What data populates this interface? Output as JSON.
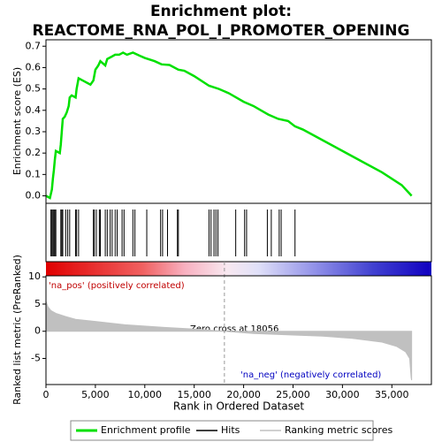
{
  "chart_data": [
    {
      "type": "line",
      "title": [
        "Enrichment plot:",
        "REACTOME_RNA_POL_I_PROMOTER_OPENING"
      ],
      "y_label": "Enrichment score (ES)",
      "xlim": [
        0,
        39000
      ],
      "ylim": [
        -0.035,
        0.73
      ],
      "yticks": [
        {
          "value": 0,
          "label": "0.0"
        },
        0.1,
        0.2,
        0.3,
        0.4,
        0.5,
        0.6,
        0.7
      ],
      "x": [
        0,
        400,
        600,
        700,
        800,
        900,
        1000,
        1400,
        1500,
        1600,
        1700,
        1900,
        2100,
        2300,
        2400,
        2600,
        3000,
        3100,
        3300,
        3700,
        4500,
        4800,
        5000,
        5300,
        5500,
        6000,
        6200,
        6600,
        7000,
        7400,
        7800,
        8200,
        8800,
        9500,
        10000,
        11000,
        11700,
        12500,
        13400,
        14000,
        15000,
        16500,
        17500,
        18500,
        20000,
        21000,
        22500,
        23500,
        24500,
        25200,
        26000,
        28000,
        30000,
        32000,
        34000,
        36000,
        37000
      ],
      "series": [
        {
          "name": "Enrichment profile",
          "color": "#00e000",
          "values": [
            0.0,
            -0.01,
            0.03,
            0.08,
            0.12,
            0.17,
            0.21,
            0.2,
            0.24,
            0.3,
            0.36,
            0.37,
            0.39,
            0.42,
            0.46,
            0.47,
            0.46,
            0.5,
            0.55,
            0.54,
            0.52,
            0.54,
            0.59,
            0.61,
            0.63,
            0.61,
            0.64,
            0.65,
            0.66,
            0.66,
            0.67,
            0.66,
            0.67,
            0.655,
            0.645,
            0.63,
            0.615,
            0.612,
            0.59,
            0.585,
            0.56,
            0.515,
            0.5,
            0.48,
            0.44,
            0.42,
            0.38,
            0.36,
            0.35,
            0.325,
            0.31,
            0.26,
            0.21,
            0.16,
            0.11,
            0.05,
            0.0
          ]
        }
      ]
    },
    {
      "type": "rug",
      "name": "Hits",
      "color": "#000000",
      "xlim": [
        0,
        39000
      ],
      "x": [
        500,
        600,
        700,
        800,
        900,
        1000,
        1500,
        1600,
        1700,
        2000,
        2200,
        2400,
        3000,
        3100,
        3300,
        4800,
        4900,
        5100,
        5400,
        5500,
        6000,
        6200,
        6500,
        6700,
        7000,
        7200,
        7700,
        7900,
        8800,
        9000,
        10200,
        11600,
        11800,
        12300,
        13300,
        13400,
        16500,
        16700,
        17000,
        17200,
        17400,
        19200,
        20100,
        20300,
        22400,
        22800,
        23600,
        23800,
        25200
      ]
    },
    {
      "type": "area",
      "y_label": "Ranked list metric (PreRanked)",
      "x_label": "Rank in Ordered Dataset",
      "xlim": [
        0,
        39000
      ],
      "ylim": [
        -9.8,
        10.2
      ],
      "xticks": [
        0,
        {
          "value": 5000,
          "label": "5,000"
        },
        {
          "value": 10000,
          "label": "10,000"
        },
        {
          "value": 15000,
          "label": "15,000"
        },
        {
          "value": 20000,
          "label": "20,000"
        },
        {
          "value": 25000,
          "label": "25,000"
        },
        {
          "value": 30000,
          "label": "30,000"
        },
        {
          "value": 35000,
          "label": "35,000"
        }
      ],
      "yticks": [
        10,
        5,
        0,
        -5
      ],
      "annotations": [
        "'na_pos' (positively correlated)",
        "Zero cross at 18056",
        "'na_neg' (negatively correlated)"
      ],
      "zero_cross": 18056,
      "x": [
        0,
        200,
        500,
        1000,
        2000,
        3000,
        5000,
        8000,
        12000,
        15000,
        18056,
        21000,
        25000,
        28000,
        31000,
        34000,
        35500,
        36400,
        36800,
        36950,
        37000
      ],
      "series": [
        {
          "name": "Ranking metric scores",
          "color": "#c0c0c0",
          "values": [
            5.5,
            4.5,
            3.8,
            3.3,
            2.7,
            2.2,
            1.8,
            1.2,
            0.7,
            0.4,
            0,
            -0.4,
            -0.7,
            -0.9,
            -1.3,
            -2.0,
            -2.8,
            -3.8,
            -5,
            -8.5,
            -9
          ]
        }
      ]
    }
  ]
}
